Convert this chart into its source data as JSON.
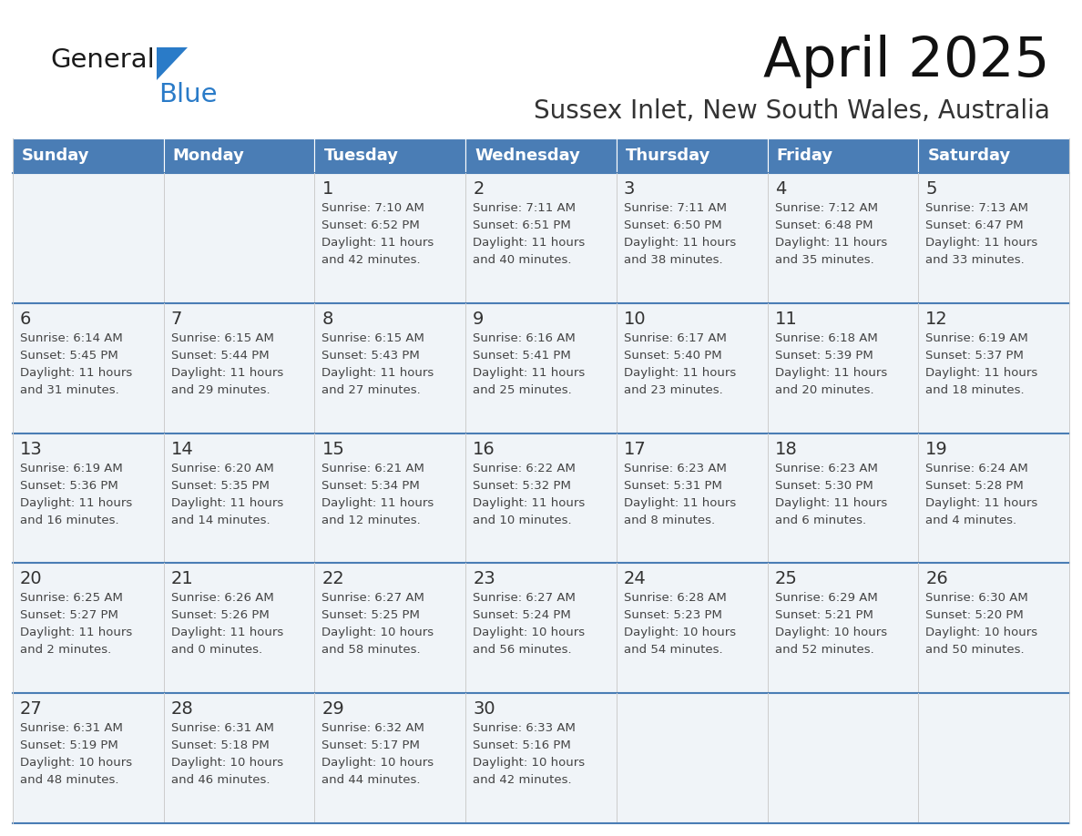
{
  "title": "April 2025",
  "subtitle": "Sussex Inlet, New South Wales, Australia",
  "days_of_week": [
    "Sunday",
    "Monday",
    "Tuesday",
    "Wednesday",
    "Thursday",
    "Friday",
    "Saturday"
  ],
  "header_bg": "#4a7db5",
  "header_text": "#ffffff",
  "row_bg": "#f0f4f8",
  "row_border_color": "#4a7db5",
  "cell_divider_color": "#cccccc",
  "day_number_color": "#333333",
  "text_color": "#444444",
  "logo_general_color": "#1a1a1a",
  "logo_blue_color": "#2a7bc8",
  "logo_triangle_color": "#2a7bc8",
  "calendar_data": [
    [
      {
        "day": null,
        "info": null
      },
      {
        "day": null,
        "info": null
      },
      {
        "day": 1,
        "info": "Sunrise: 7:10 AM\nSunset: 6:52 PM\nDaylight: 11 hours\nand 42 minutes."
      },
      {
        "day": 2,
        "info": "Sunrise: 7:11 AM\nSunset: 6:51 PM\nDaylight: 11 hours\nand 40 minutes."
      },
      {
        "day": 3,
        "info": "Sunrise: 7:11 AM\nSunset: 6:50 PM\nDaylight: 11 hours\nand 38 minutes."
      },
      {
        "day": 4,
        "info": "Sunrise: 7:12 AM\nSunset: 6:48 PM\nDaylight: 11 hours\nand 35 minutes."
      },
      {
        "day": 5,
        "info": "Sunrise: 7:13 AM\nSunset: 6:47 PM\nDaylight: 11 hours\nand 33 minutes."
      }
    ],
    [
      {
        "day": 6,
        "info": "Sunrise: 6:14 AM\nSunset: 5:45 PM\nDaylight: 11 hours\nand 31 minutes."
      },
      {
        "day": 7,
        "info": "Sunrise: 6:15 AM\nSunset: 5:44 PM\nDaylight: 11 hours\nand 29 minutes."
      },
      {
        "day": 8,
        "info": "Sunrise: 6:15 AM\nSunset: 5:43 PM\nDaylight: 11 hours\nand 27 minutes."
      },
      {
        "day": 9,
        "info": "Sunrise: 6:16 AM\nSunset: 5:41 PM\nDaylight: 11 hours\nand 25 minutes."
      },
      {
        "day": 10,
        "info": "Sunrise: 6:17 AM\nSunset: 5:40 PM\nDaylight: 11 hours\nand 23 minutes."
      },
      {
        "day": 11,
        "info": "Sunrise: 6:18 AM\nSunset: 5:39 PM\nDaylight: 11 hours\nand 20 minutes."
      },
      {
        "day": 12,
        "info": "Sunrise: 6:19 AM\nSunset: 5:37 PM\nDaylight: 11 hours\nand 18 minutes."
      }
    ],
    [
      {
        "day": 13,
        "info": "Sunrise: 6:19 AM\nSunset: 5:36 PM\nDaylight: 11 hours\nand 16 minutes."
      },
      {
        "day": 14,
        "info": "Sunrise: 6:20 AM\nSunset: 5:35 PM\nDaylight: 11 hours\nand 14 minutes."
      },
      {
        "day": 15,
        "info": "Sunrise: 6:21 AM\nSunset: 5:34 PM\nDaylight: 11 hours\nand 12 minutes."
      },
      {
        "day": 16,
        "info": "Sunrise: 6:22 AM\nSunset: 5:32 PM\nDaylight: 11 hours\nand 10 minutes."
      },
      {
        "day": 17,
        "info": "Sunrise: 6:23 AM\nSunset: 5:31 PM\nDaylight: 11 hours\nand 8 minutes."
      },
      {
        "day": 18,
        "info": "Sunrise: 6:23 AM\nSunset: 5:30 PM\nDaylight: 11 hours\nand 6 minutes."
      },
      {
        "day": 19,
        "info": "Sunrise: 6:24 AM\nSunset: 5:28 PM\nDaylight: 11 hours\nand 4 minutes."
      }
    ],
    [
      {
        "day": 20,
        "info": "Sunrise: 6:25 AM\nSunset: 5:27 PM\nDaylight: 11 hours\nand 2 minutes."
      },
      {
        "day": 21,
        "info": "Sunrise: 6:26 AM\nSunset: 5:26 PM\nDaylight: 11 hours\nand 0 minutes."
      },
      {
        "day": 22,
        "info": "Sunrise: 6:27 AM\nSunset: 5:25 PM\nDaylight: 10 hours\nand 58 minutes."
      },
      {
        "day": 23,
        "info": "Sunrise: 6:27 AM\nSunset: 5:24 PM\nDaylight: 10 hours\nand 56 minutes."
      },
      {
        "day": 24,
        "info": "Sunrise: 6:28 AM\nSunset: 5:23 PM\nDaylight: 10 hours\nand 54 minutes."
      },
      {
        "day": 25,
        "info": "Sunrise: 6:29 AM\nSunset: 5:21 PM\nDaylight: 10 hours\nand 52 minutes."
      },
      {
        "day": 26,
        "info": "Sunrise: 6:30 AM\nSunset: 5:20 PM\nDaylight: 10 hours\nand 50 minutes."
      }
    ],
    [
      {
        "day": 27,
        "info": "Sunrise: 6:31 AM\nSunset: 5:19 PM\nDaylight: 10 hours\nand 48 minutes."
      },
      {
        "day": 28,
        "info": "Sunrise: 6:31 AM\nSunset: 5:18 PM\nDaylight: 10 hours\nand 46 minutes."
      },
      {
        "day": 29,
        "info": "Sunrise: 6:32 AM\nSunset: 5:17 PM\nDaylight: 10 hours\nand 44 minutes."
      },
      {
        "day": 30,
        "info": "Sunrise: 6:33 AM\nSunset: 5:16 PM\nDaylight: 10 hours\nand 42 minutes."
      },
      {
        "day": null,
        "info": null
      },
      {
        "day": null,
        "info": null
      },
      {
        "day": null,
        "info": null
      }
    ]
  ]
}
